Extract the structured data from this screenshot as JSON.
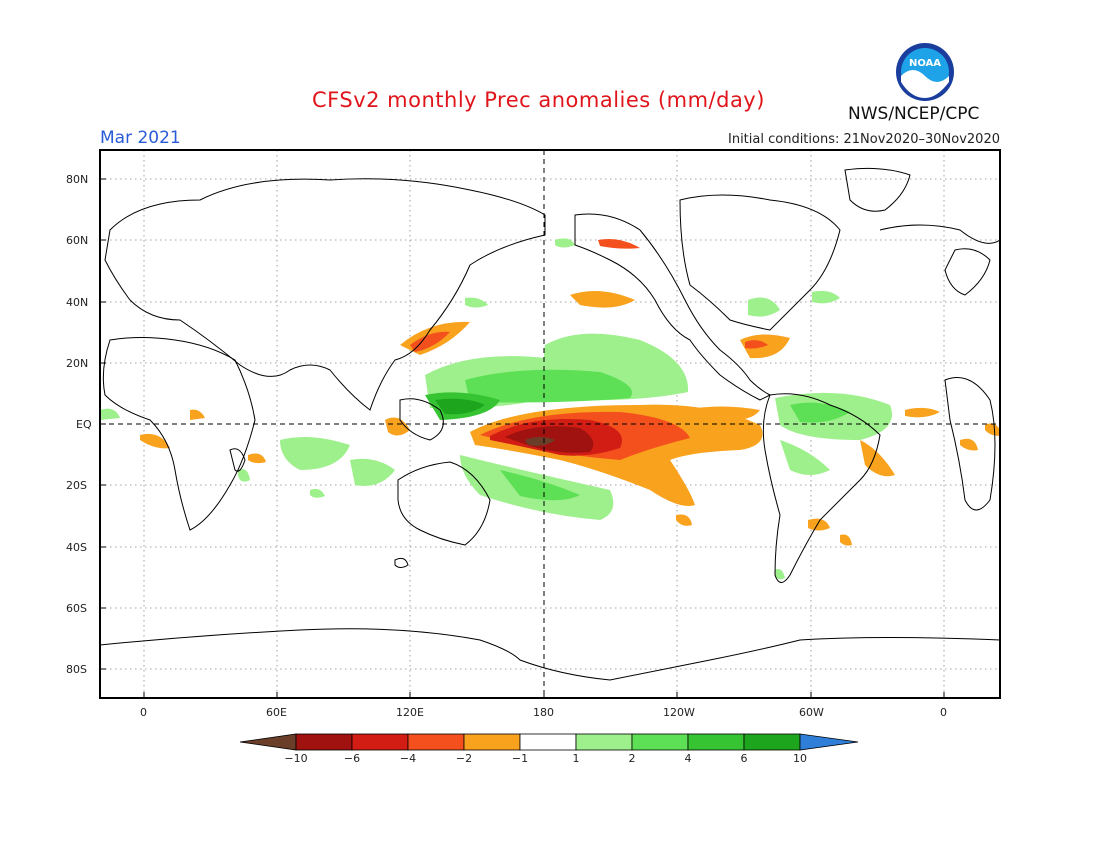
{
  "header": {
    "title": "CFSv2 monthly Prec anomalies (mm/day)",
    "month": "Mar 2021",
    "initial_conditions": "Initial conditions: 21Nov2020–30Nov2020",
    "agency": "NWS/NCEP/CPC",
    "logo_text": "NOAA"
  },
  "axes": {
    "lat_labels": [
      "80N",
      "60N",
      "40N",
      "20N",
      "EQ",
      "20S",
      "40S",
      "60S",
      "80S"
    ],
    "lon_labels": [
      "0",
      "60E",
      "120E",
      "180",
      "120W",
      "60W",
      "0"
    ]
  },
  "legend": {
    "labels": [
      "−10",
      "−6",
      "−4",
      "−2",
      "−1",
      "1",
      "2",
      "4",
      "6",
      "10"
    ],
    "colors": [
      "#6b3e2a",
      "#a0120f",
      "#d11d14",
      "#f4501d",
      "#f9a21d",
      "#ffffff",
      "#9ef08c",
      "#5de055",
      "#36c433",
      "#1ea51e",
      "#2f7fd9"
    ]
  }
}
